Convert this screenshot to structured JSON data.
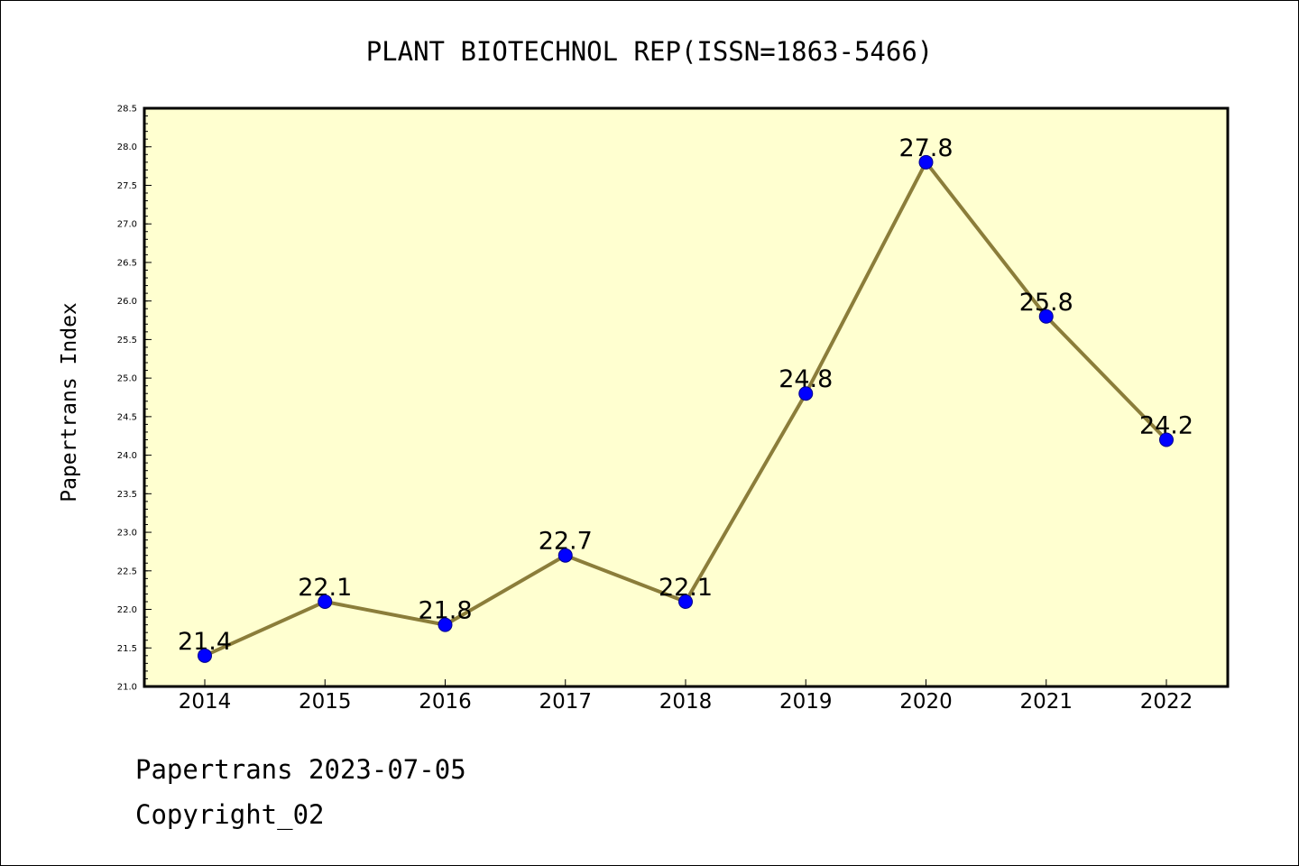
{
  "chart_data": {
    "type": "line",
    "title": "PLANT BIOTECHNOL REP(ISSN=1863-5466)",
    "ylabel": "Papertrans Index",
    "xlabel": "",
    "categories": [
      "2014",
      "2015",
      "2016",
      "2017",
      "2018",
      "2019",
      "2020",
      "2021",
      "2022"
    ],
    "values": [
      21.4,
      22.1,
      21.8,
      22.7,
      22.1,
      24.8,
      27.8,
      25.8,
      24.2
    ],
    "data_labels": [
      "21.4",
      "22.1",
      "21.8",
      "22.7",
      "22.1",
      "24.8",
      "27.8",
      "25.8",
      "24.2"
    ],
    "ylim": [
      21.0,
      28.5
    ],
    "yticks": [
      "21.0",
      "21.5",
      "22.0",
      "22.5",
      "23.0",
      "23.5",
      "24.0",
      "24.5",
      "25.0",
      "25.5",
      "26.0",
      "26.5",
      "27.0",
      "27.5",
      "28.0",
      "28.5"
    ],
    "grid": false,
    "colors": {
      "plot_background": "#ffffd0",
      "line": "#8b7d3a",
      "marker": "#0000ff",
      "marker_edge": "#00008b"
    }
  },
  "footer": {
    "date_line": "Papertrans 2023-07-05",
    "copyright": "Copyright_02"
  }
}
